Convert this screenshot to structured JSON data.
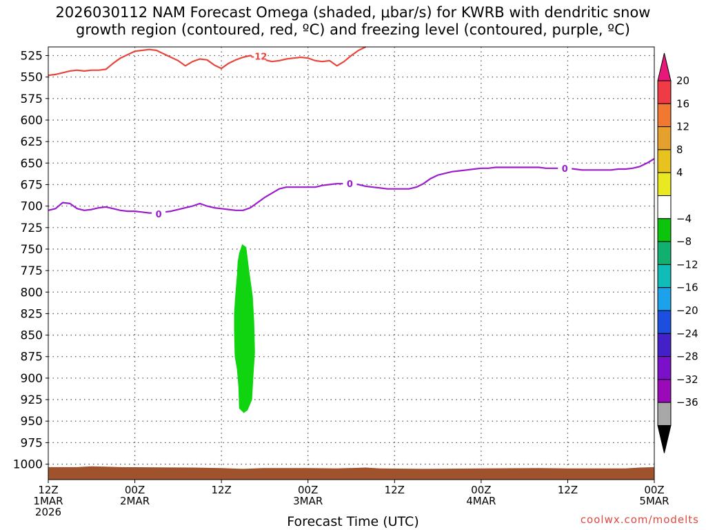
{
  "chart_data": {
    "type": "time-height",
    "title_line1": "2026030112 NAM Forecast Omega (shaded, μbar/s) for KWRB with dendritic snow",
    "title_line2": "growth region (contoured, red, ºC) and freezing level (contoured, purple, ºC)",
    "xlabel": "Forecast Time (UTC)",
    "credit": "coolwx.com/modelts",
    "x_range_hours": [
      0,
      84
    ],
    "y_range_hPa": [
      515,
      1018
    ],
    "y_ticks": [
      525,
      550,
      575,
      600,
      625,
      650,
      675,
      700,
      725,
      750,
      775,
      800,
      825,
      850,
      875,
      900,
      925,
      950,
      975,
      1000
    ],
    "x_ticks": [
      {
        "h": 0,
        "time": "12Z",
        "date": "1MAR",
        "year": "2026"
      },
      {
        "h": 12,
        "time": "00Z",
        "date": "2MAR",
        "year": ""
      },
      {
        "h": 24,
        "time": "12Z",
        "date": "",
        "year": ""
      },
      {
        "h": 36,
        "time": "00Z",
        "date": "3MAR",
        "year": ""
      },
      {
        "h": 48,
        "time": "12Z",
        "date": "",
        "year": ""
      },
      {
        "h": 60,
        "time": "00Z",
        "date": "4MAR",
        "year": ""
      },
      {
        "h": 72,
        "time": "12Z",
        "date": "",
        "year": ""
      },
      {
        "h": 84,
        "time": "00Z",
        "date": "5MAR",
        "year": ""
      }
    ],
    "dgz_label": "-12",
    "freezing_label": "0",
    "dgz_top": {
      "color": "#e8453c",
      "points": [
        [
          0,
          548
        ],
        [
          1,
          547
        ],
        [
          2,
          545
        ],
        [
          3,
          543
        ],
        [
          4,
          542
        ],
        [
          5,
          543
        ],
        [
          6,
          542
        ],
        [
          7,
          542
        ],
        [
          8,
          541
        ],
        [
          9,
          534
        ],
        [
          10,
          528
        ],
        [
          11,
          524
        ],
        [
          12,
          520
        ],
        [
          13,
          519
        ],
        [
          14,
          518
        ],
        [
          15,
          519
        ],
        [
          16,
          523
        ],
        [
          17,
          527
        ],
        [
          18,
          531
        ],
        [
          19,
          537
        ],
        [
          20,
          532
        ],
        [
          21,
          529
        ],
        [
          22,
          530
        ],
        [
          23,
          536
        ],
        [
          24,
          540
        ],
        [
          25,
          534
        ],
        [
          26,
          530
        ],
        [
          27,
          527
        ],
        [
          28,
          525
        ],
        [
          29,
          527
        ],
        [
          30,
          530
        ],
        [
          31,
          532
        ],
        [
          32,
          531
        ],
        [
          33,
          529
        ],
        [
          34,
          528
        ],
        [
          35,
          527
        ],
        [
          36,
          528
        ],
        [
          37,
          531
        ],
        [
          38,
          532
        ],
        [
          39,
          531
        ],
        [
          40,
          537
        ],
        [
          41,
          532
        ],
        [
          42,
          525
        ],
        [
          43,
          519
        ],
        [
          44,
          515
        ]
      ]
    },
    "freezing_level": {
      "color": "#9b1ccb",
      "points": [
        [
          0,
          705
        ],
        [
          1,
          703
        ],
        [
          2,
          696
        ],
        [
          3,
          697
        ],
        [
          4,
          703
        ],
        [
          5,
          705
        ],
        [
          6,
          704
        ],
        [
          7,
          702
        ],
        [
          8,
          701
        ],
        [
          9,
          703
        ],
        [
          10,
          705
        ],
        [
          11,
          706
        ],
        [
          12,
          706
        ],
        [
          13,
          707
        ],
        [
          14,
          708
        ],
        [
          15,
          708
        ],
        [
          16,
          707
        ],
        [
          17,
          706
        ],
        [
          18,
          704
        ],
        [
          19,
          702
        ],
        [
          20,
          700
        ],
        [
          21,
          697
        ],
        [
          22,
          700
        ],
        [
          23,
          702
        ],
        [
          24,
          703
        ],
        [
          25,
          704
        ],
        [
          26,
          705
        ],
        [
          27,
          705
        ],
        [
          28,
          702
        ],
        [
          29,
          696
        ],
        [
          30,
          690
        ],
        [
          31,
          685
        ],
        [
          32,
          680
        ],
        [
          33,
          678
        ],
        [
          34,
          678
        ],
        [
          35,
          678
        ],
        [
          36,
          678
        ],
        [
          37,
          678
        ],
        [
          38,
          676
        ],
        [
          39,
          675
        ],
        [
          40,
          674
        ],
        [
          41,
          674
        ],
        [
          42,
          674
        ],
        [
          43,
          675
        ],
        [
          44,
          677
        ],
        [
          45,
          678
        ],
        [
          46,
          679
        ],
        [
          47,
          680
        ],
        [
          48,
          680
        ],
        [
          49,
          680
        ],
        [
          50,
          680
        ],
        [
          51,
          678
        ],
        [
          52,
          674
        ],
        [
          53,
          668
        ],
        [
          54,
          664
        ],
        [
          55,
          662
        ],
        [
          56,
          660
        ],
        [
          57,
          659
        ],
        [
          58,
          658
        ],
        [
          59,
          657
        ],
        [
          60,
          656
        ],
        [
          61,
          656
        ],
        [
          62,
          655
        ],
        [
          63,
          655
        ],
        [
          64,
          655
        ],
        [
          65,
          655
        ],
        [
          66,
          655
        ],
        [
          67,
          655
        ],
        [
          68,
          655
        ],
        [
          69,
          656
        ],
        [
          70,
          656
        ],
        [
          71,
          656
        ],
        [
          72,
          656
        ],
        [
          73,
          657
        ],
        [
          74,
          658
        ],
        [
          75,
          658
        ],
        [
          76,
          658
        ],
        [
          77,
          658
        ],
        [
          78,
          658
        ],
        [
          79,
          657
        ],
        [
          80,
          657
        ],
        [
          81,
          656
        ],
        [
          82,
          654
        ],
        [
          83,
          650
        ],
        [
          84,
          645
        ]
      ]
    },
    "omega_areas": [
      {
        "value_range": "-8 to -4",
        "color": "#0fd40f",
        "outline": [
          [
            26.3,
            765
          ],
          [
            26.5,
            755
          ],
          [
            26.9,
            745
          ],
          [
            27.4,
            748
          ],
          [
            27.8,
            775
          ],
          [
            28.3,
            805
          ],
          [
            28.5,
            835
          ],
          [
            28.6,
            870
          ],
          [
            28.4,
            895
          ],
          [
            28.2,
            925
          ],
          [
            27.6,
            937
          ],
          [
            27.1,
            940
          ],
          [
            26.5,
            935
          ],
          [
            26.4,
            910
          ],
          [
            26.2,
            890
          ],
          [
            25.9,
            875
          ],
          [
            25.8,
            845
          ],
          [
            25.8,
            825
          ],
          [
            26.0,
            800
          ],
          [
            26.2,
            780
          ]
        ]
      }
    ],
    "terrain": {
      "color": "#a0522d",
      "label": "surface"
    },
    "colorbar": {
      "labels": [
        "20",
        "16",
        "12",
        "8",
        "4",
        "−4",
        "−8",
        "−12",
        "−16",
        "−20",
        "−24",
        "−28",
        "−32",
        "−36"
      ],
      "colors": [
        "#ee3b45",
        "#f07830",
        "#e6a02e",
        "#e8c21e",
        "#e9e922",
        "#ffffff",
        "#0cc40c",
        "#12b070",
        "#10bcb8",
        "#1ca2ea",
        "#1c4fe0",
        "#4420c8",
        "#7a10c8",
        "#9a0ab8",
        "#a8a8a8"
      ],
      "top_color": "#e8177a",
      "bottom_color": "#000000"
    }
  }
}
